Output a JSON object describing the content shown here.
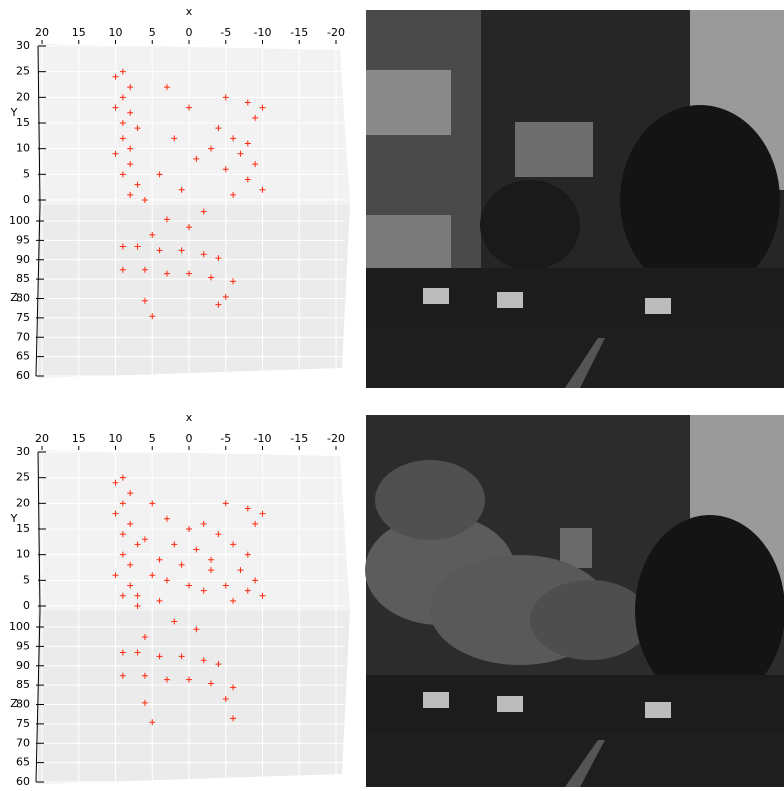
{
  "chart_data": [
    {
      "type": "scatter3d",
      "x_label": "x",
      "y_label": "Y",
      "z_label": "Z",
      "color": "#ff2a10",
      "grid": true,
      "xlim": [
        20,
        -20
      ],
      "xticks": [
        20,
        15,
        10,
        5,
        0,
        -5,
        -10,
        -15,
        -20
      ],
      "ylim": [
        0,
        30
      ],
      "yticks": [
        0,
        5,
        10,
        15,
        20,
        25,
        30
      ],
      "zlim": [
        60,
        100
      ],
      "zticks": [
        60,
        65,
        70,
        75,
        80,
        85,
        90,
        95,
        100
      ],
      "x": [
        9,
        10,
        8,
        9,
        10,
        8,
        9,
        7,
        9,
        8,
        10,
        8,
        9,
        7,
        8,
        6,
        -5,
        -8,
        -10,
        -9,
        -4,
        -6,
        -8,
        -3,
        -7,
        -9,
        -5,
        -8,
        -10,
        -6,
        3,
        0,
        2,
        -1,
        4,
        1,
        3,
        0,
        -2,
        5,
        9,
        7,
        4,
        1,
        -2,
        -4,
        9,
        6,
        3,
        0,
        -3,
        -6,
        -5,
        -4,
        6,
        5
      ],
      "y": [
        25,
        24,
        22,
        20,
        18,
        17,
        15,
        14,
        12,
        10,
        9,
        7,
        5,
        3,
        1,
        0,
        20,
        19,
        18,
        16,
        14,
        12,
        11,
        10,
        9,
        7,
        6,
        4,
        2,
        1,
        22,
        18,
        12,
        8,
        5,
        2,
        0,
        0,
        0,
        0,
        0,
        0,
        0,
        0,
        0,
        0,
        0,
        0,
        0,
        0,
        0,
        0,
        0,
        0,
        0,
        0
      ],
      "z": [
        100,
        100,
        100,
        100,
        100,
        100,
        100,
        100,
        100,
        100,
        100,
        100,
        100,
        100,
        100,
        100,
        100,
        100,
        100,
        100,
        100,
        100,
        100,
        100,
        100,
        100,
        100,
        100,
        100,
        100,
        100,
        100,
        100,
        100,
        100,
        100,
        95,
        93,
        97,
        91,
        88,
        88,
        87,
        87,
        86,
        85,
        82,
        82,
        81,
        81,
        80,
        79,
        75,
        73,
        74,
        70
      ]
    },
    {
      "type": "scatter3d",
      "x_label": "x",
      "y_label": "Y",
      "z_label": "Z",
      "color": "#ff2a10",
      "grid": true,
      "xlim": [
        20,
        -20
      ],
      "xticks": [
        20,
        15,
        10,
        5,
        0,
        -5,
        -10,
        -15,
        -20
      ],
      "ylim": [
        0,
        30
      ],
      "yticks": [
        0,
        5,
        10,
        15,
        20,
        25,
        30
      ],
      "zlim": [
        60,
        100
      ],
      "zticks": [
        60,
        65,
        70,
        75,
        80,
        85,
        90,
        95,
        100
      ],
      "x": [
        9,
        10,
        8,
        9,
        10,
        8,
        9,
        7,
        9,
        8,
        10,
        8,
        9,
        7,
        -5,
        -8,
        -10,
        -9,
        -4,
        -6,
        -8,
        -3,
        -7,
        -9,
        -5,
        -8,
        -10,
        -6,
        5,
        3,
        0,
        -2,
        6,
        2,
        -1,
        4,
        1,
        -3,
        5,
        3,
        0,
        -2,
        7,
        4,
        2,
        -1,
        6,
        9,
        7,
        4,
        1,
        -2,
        -4,
        9,
        6,
        3,
        0,
        -3,
        -6,
        -5,
        6,
        5,
        -6
      ],
      "y": [
        25,
        24,
        22,
        20,
        18,
        16,
        14,
        12,
        10,
        8,
        6,
        4,
        2,
        0,
        20,
        19,
        18,
        16,
        14,
        12,
        10,
        9,
        7,
        5,
        4,
        3,
        2,
        1,
        20,
        17,
        15,
        16,
        13,
        12,
        11,
        9,
        8,
        7,
        6,
        5,
        4,
        3,
        2,
        1,
        0,
        0,
        0,
        0,
        0,
        0,
        0,
        0,
        0,
        0,
        0,
        0,
        0,
        0,
        0,
        0,
        0,
        0,
        0
      ],
      "z": [
        100,
        100,
        100,
        100,
        100,
        100,
        100,
        100,
        100,
        100,
        100,
        100,
        100,
        100,
        100,
        100,
        100,
        100,
        100,
        100,
        100,
        100,
        100,
        100,
        100,
        100,
        100,
        100,
        100,
        100,
        100,
        100,
        100,
        100,
        100,
        100,
        100,
        100,
        100,
        100,
        100,
        100,
        100,
        100,
        96,
        94,
        92,
        88,
        88,
        87,
        87,
        86,
        85,
        82,
        82,
        81,
        81,
        80,
        79,
        76,
        75,
        70,
        71
      ]
    }
  ]
}
